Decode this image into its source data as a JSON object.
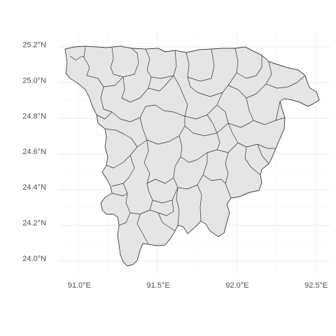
{
  "chart_data": {
    "type": "map",
    "title": "",
    "xlabel": "",
    "ylabel": "",
    "x_ticks": [
      {
        "value": 91.0,
        "label": "91.0°E"
      },
      {
        "value": 91.5,
        "label": "91.5°E"
      },
      {
        "value": 92.0,
        "label": "92.0°E"
      },
      {
        "value": 92.5,
        "label": "92.5°E"
      }
    ],
    "y_ticks": [
      {
        "value": 24.0,
        "label": "24.0°N"
      },
      {
        "value": 24.2,
        "label": "24.2°N"
      },
      {
        "value": 24.4,
        "label": "24.4°N"
      },
      {
        "value": 24.6,
        "label": "24.6°N"
      },
      {
        "value": 24.8,
        "label": "24.8°N"
      },
      {
        "value": 25.0,
        "label": "25.0°N"
      },
      {
        "value": 25.2,
        "label": "25.2°N"
      }
    ],
    "xlim": [
      90.87,
      92.59
    ],
    "ylim": [
      23.91,
      25.28
    ],
    "grid": true,
    "fill_color": "#e5e5e5",
    "border_color": "#333333",
    "grid_color": "#ebebeb",
    "background": "#ffffff"
  }
}
